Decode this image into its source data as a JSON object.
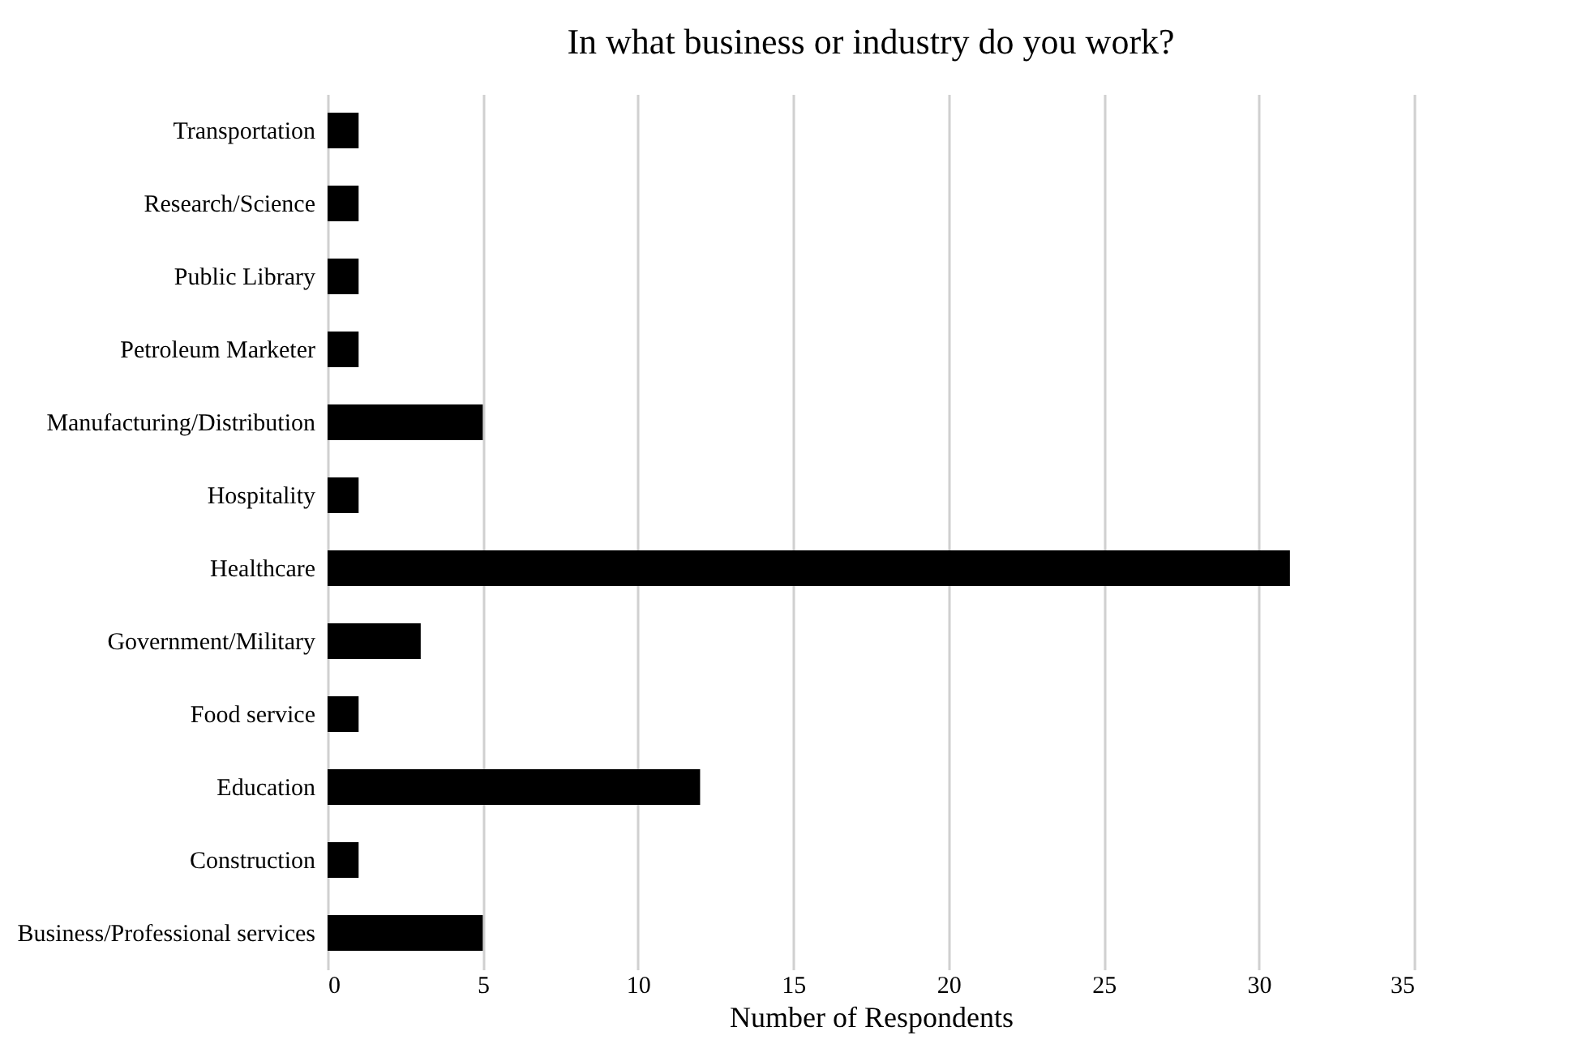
{
  "chart_data": {
    "type": "bar",
    "orientation": "horizontal",
    "title": "In what business or industry do you work?",
    "xlabel": "Number of Respondents",
    "categories": [
      "Transportation",
      "Research/Science",
      "Public Library",
      "Petroleum Marketer ",
      "Manufacturing/Distribution",
      "Hospitality",
      "Healthcare",
      "Government/Military",
      "Food service",
      "Education",
      "Construction",
      "Business/Professional services"
    ],
    "values": [
      1,
      1,
      1,
      1,
      5,
      1,
      31,
      3,
      1,
      12,
      1,
      5
    ],
    "color": "#000000",
    "xlim": [
      0,
      35
    ],
    "xticks": [
      0,
      5,
      10,
      15,
      20,
      25,
      30,
      35
    ],
    "grid": "x"
  }
}
